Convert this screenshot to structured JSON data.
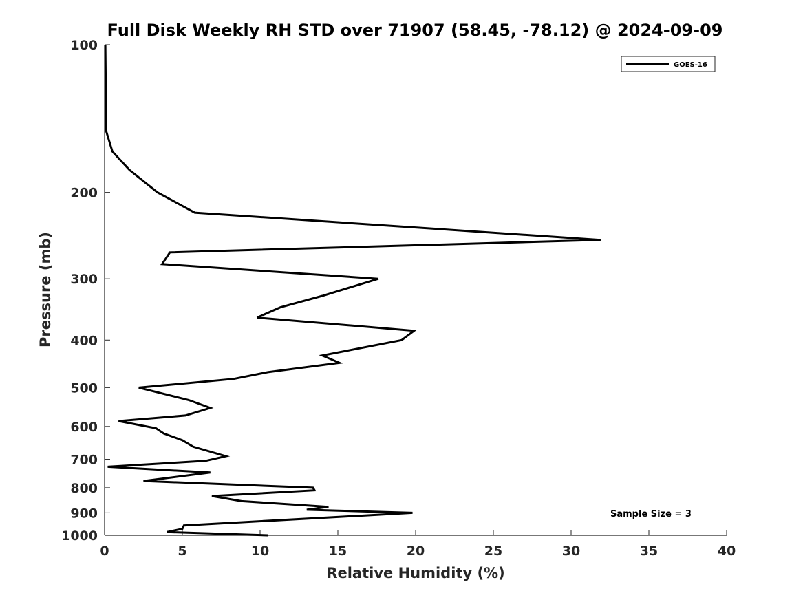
{
  "chart_data": {
    "type": "line",
    "title": "Full Disk Weekly RH STD over 71907 (58.45, -78.12) @ 2024-09-09",
    "xlabel": "Relative Humidity (%)",
    "ylabel": "Pressure (mb)",
    "xlim": [
      0,
      40
    ],
    "ylim": [
      1000,
      100
    ],
    "y_scale": "log",
    "y_inverted": true,
    "grid": false,
    "legend_position": "top-right",
    "x_ticks": [
      0,
      5,
      10,
      15,
      20,
      25,
      30,
      35,
      40
    ],
    "y_ticks": [
      100,
      200,
      300,
      400,
      500,
      600,
      700,
      800,
      900,
      1000
    ],
    "series": [
      {
        "name": "GOES-16",
        "color": "#000000",
        "points": [
          [
            0.05,
            100
          ],
          [
            0.1,
            150
          ],
          [
            0.5,
            165
          ],
          [
            1.6,
            180
          ],
          [
            3.4,
            200
          ],
          [
            5.8,
            220
          ],
          [
            31.9,
            250
          ],
          [
            4.2,
            265
          ],
          [
            3.7,
            280
          ],
          [
            17.6,
            300
          ],
          [
            14.0,
            325
          ],
          [
            11.3,
            343
          ],
          [
            9.8,
            360
          ],
          [
            19.9,
            383
          ],
          [
            19.1,
            400
          ],
          [
            14.0,
            430
          ],
          [
            15.1,
            445
          ],
          [
            10.5,
            465
          ],
          [
            8.3,
            480
          ],
          [
            2.2,
            500
          ],
          [
            5.4,
            530
          ],
          [
            6.8,
            550
          ],
          [
            5.2,
            570
          ],
          [
            0.9,
            585
          ],
          [
            3.3,
            605
          ],
          [
            3.8,
            620
          ],
          [
            5.0,
            640
          ],
          [
            5.7,
            660
          ],
          [
            7.8,
            690
          ],
          [
            6.5,
            705
          ],
          [
            0.2,
            725
          ],
          [
            6.8,
            745
          ],
          [
            2.5,
            775
          ],
          [
            13.4,
            800
          ],
          [
            13.5,
            810
          ],
          [
            6.9,
            832
          ],
          [
            8.8,
            852
          ],
          [
            14.4,
            875
          ],
          [
            13.0,
            887
          ],
          [
            19.8,
            900
          ],
          [
            5.1,
            955
          ],
          [
            5.0,
            970
          ],
          [
            4.0,
            985
          ],
          [
            10.5,
            1000
          ]
        ]
      }
    ],
    "annotations": [
      "Sample Size = 3"
    ]
  }
}
